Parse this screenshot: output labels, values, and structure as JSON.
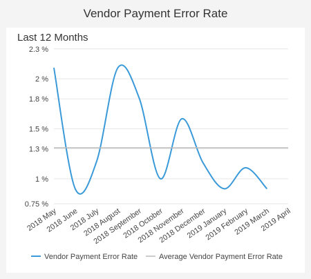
{
  "header": {
    "title": "Vendor Payment Error Rate"
  },
  "card": {
    "subtitle": "Last 12 Months"
  },
  "colors": {
    "series": "#3a9ad9",
    "average": "#bbbbbb",
    "grid": "#e6e6e6"
  },
  "chart_data": {
    "type": "line",
    "categories": [
      "2018 May",
      "2018 June",
      "2018 July",
      "2018 August",
      "2018 September",
      "2018 October",
      "2018 November",
      "2018 December",
      "2019 January",
      "2019 February",
      "2019 March",
      "2019 April"
    ],
    "yticks": [
      "0.75 %",
      "1 %",
      "1.3 %",
      "1.5 %",
      "1.8 %",
      "2 %",
      "2.3 %"
    ],
    "ylim": [
      0.75,
      2.25
    ],
    "series": [
      {
        "name": "Vendor Payment Error Rate",
        "values": [
          2.11,
          0.9,
          1.17,
          2.11,
          1.81,
          1.0,
          1.6,
          1.16,
          0.9,
          1.11,
          0.9,
          null
        ]
      },
      {
        "name": "Average Vendor Payment Error Rate",
        "values": [
          1.31,
          1.31,
          1.31,
          1.31,
          1.31,
          1.31,
          1.31,
          1.31,
          1.31,
          1.31,
          1.31,
          1.31
        ]
      }
    ],
    "legend": "bottom"
  }
}
